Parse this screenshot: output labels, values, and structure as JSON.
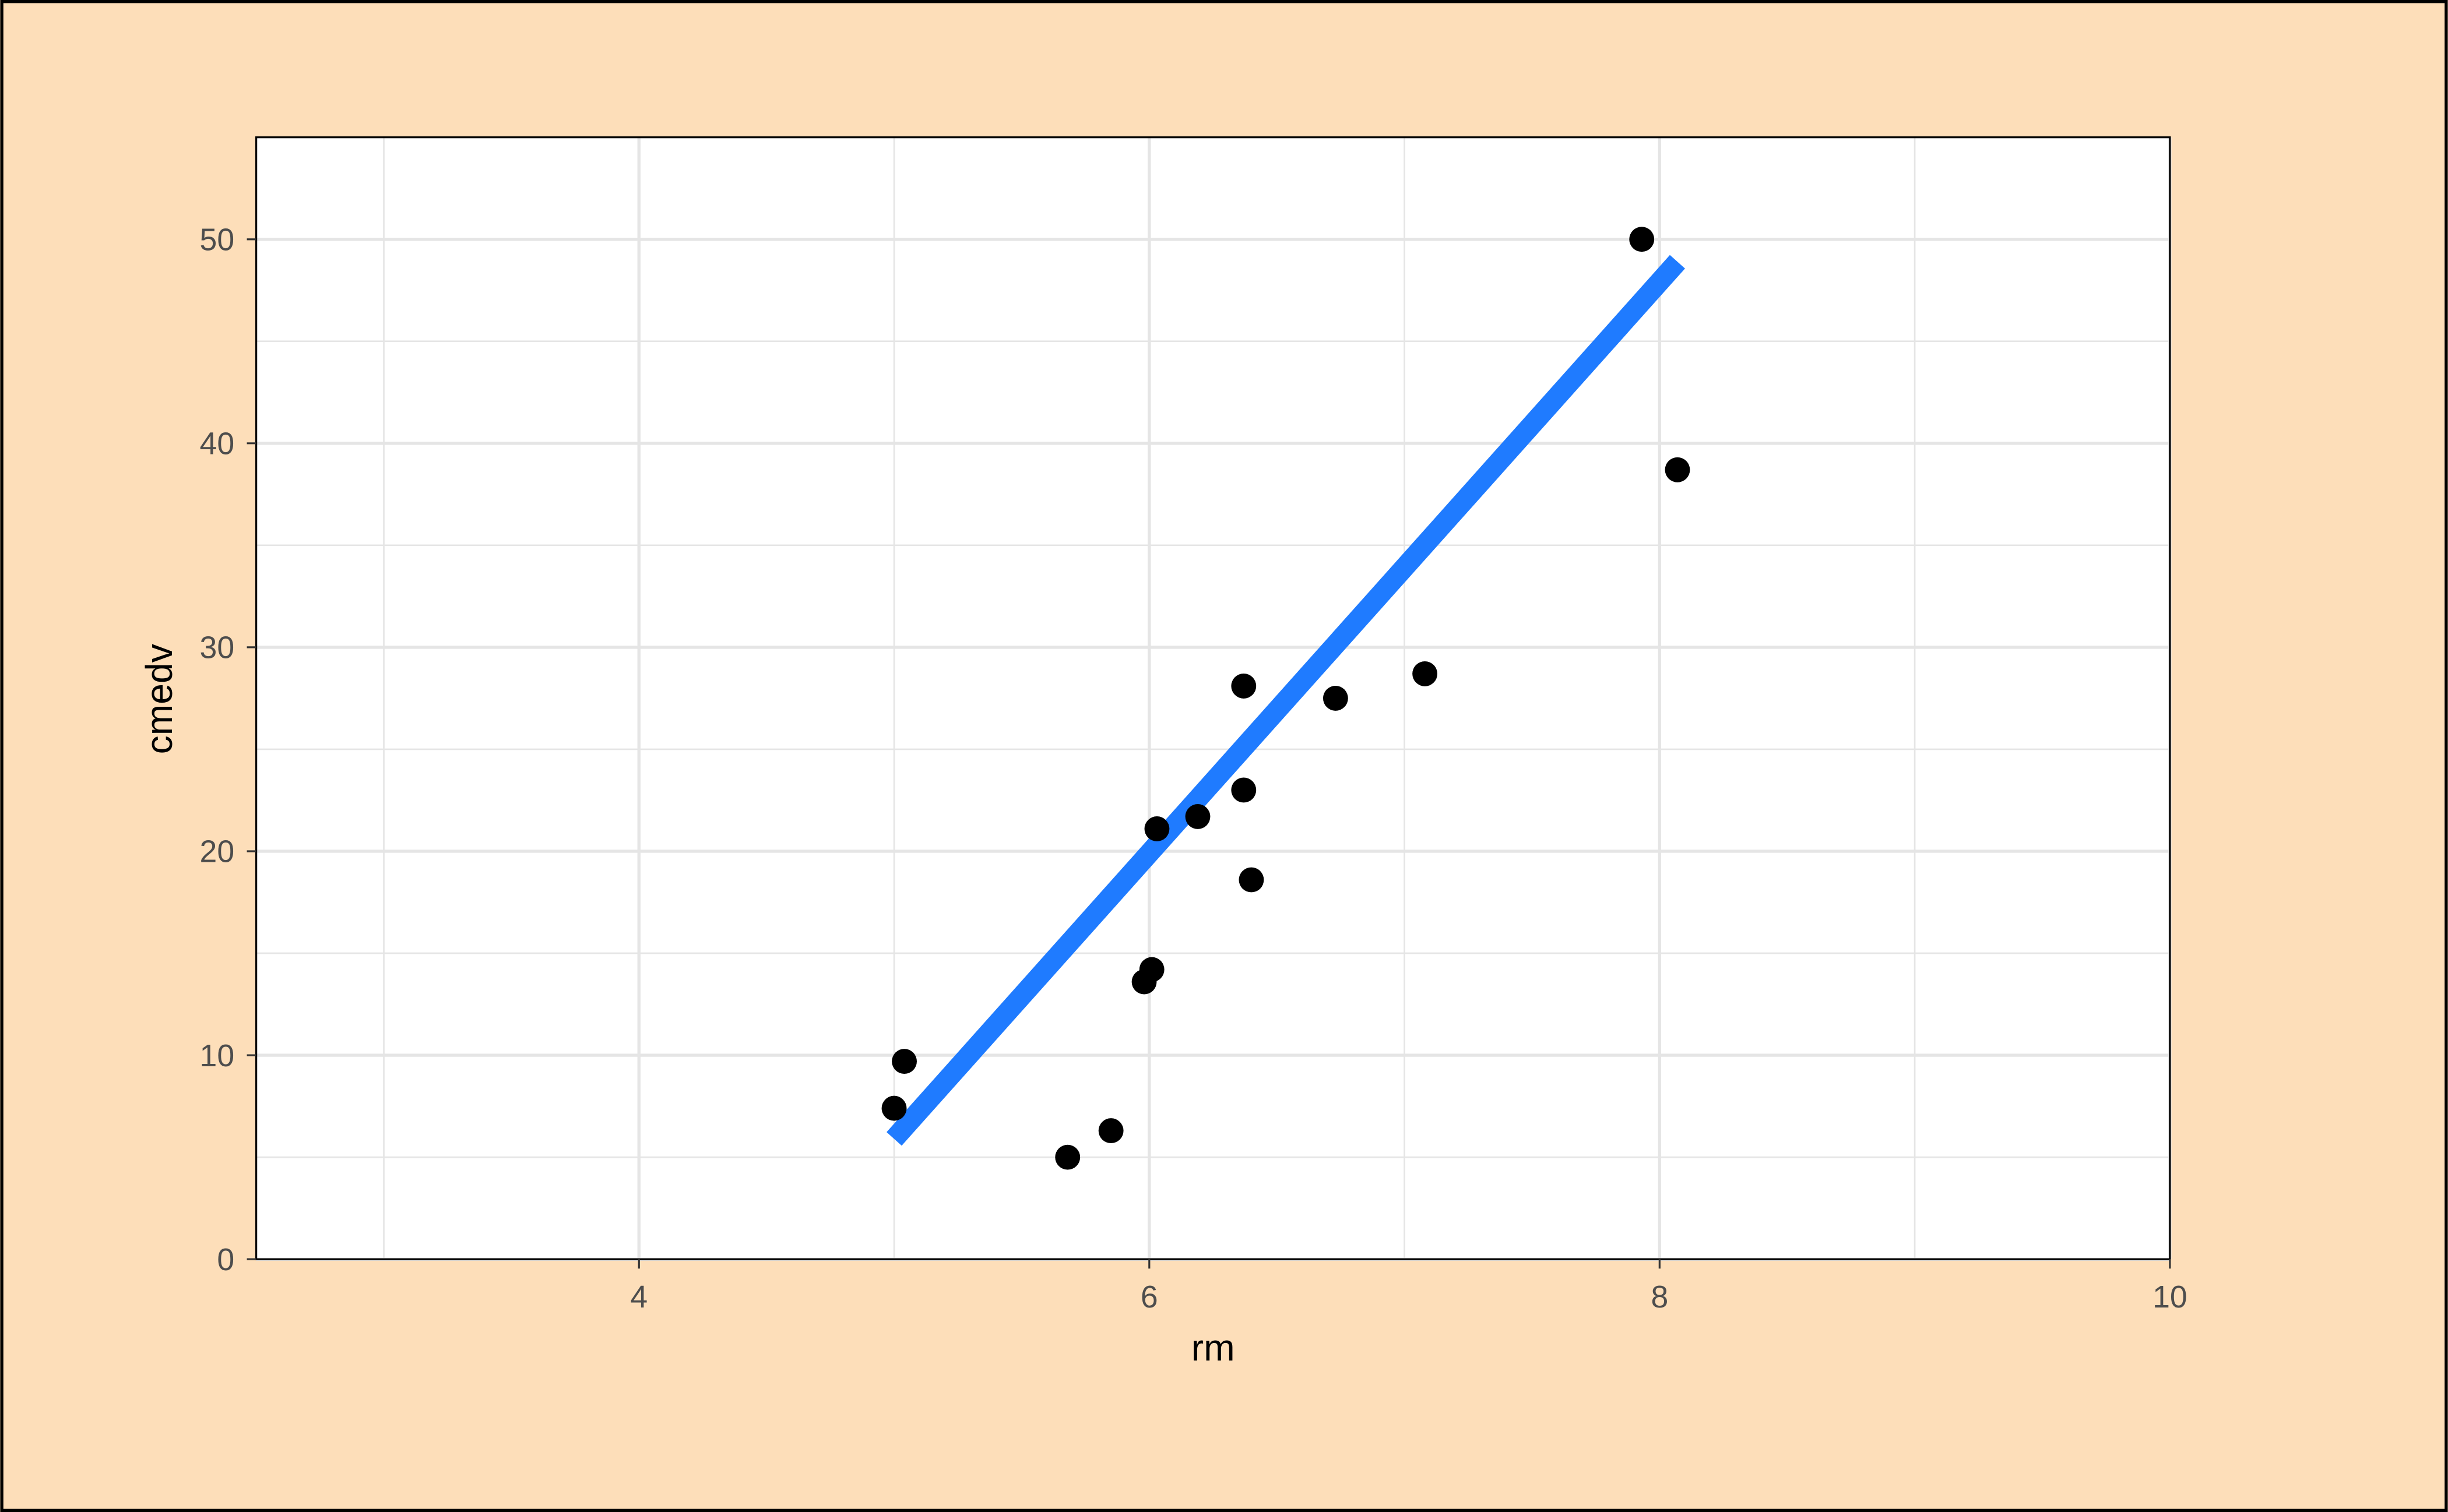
{
  "chart_data": {
    "type": "scatter",
    "title": "",
    "xlabel": "rm",
    "ylabel": "cmedv",
    "xlim": [
      2.5,
      10
    ],
    "ylim": [
      0,
      55
    ],
    "x_ticks": [
      4,
      6,
      8,
      10
    ],
    "y_ticks": [
      0,
      10,
      20,
      30,
      40,
      50
    ],
    "x_tick_labels": [
      "4",
      "6",
      "8",
      "10"
    ],
    "y_tick_labels": [
      "0",
      "10",
      "20",
      "30",
      "40",
      "50"
    ],
    "x_minor_grid": [
      3,
      5,
      7,
      9
    ],
    "y_minor_grid": [
      5,
      15,
      25,
      35,
      45
    ],
    "grid": true,
    "points": {
      "x": [
        7.93,
        8.07,
        7.08,
        6.73,
        6.37,
        6.37,
        6.19,
        6.03,
        6.4,
        6.01,
        5.98,
        5.04,
        5.0,
        5.85,
        5.68
      ],
      "y": [
        50.0,
        38.7,
        28.7,
        27.5,
        28.1,
        23.0,
        21.7,
        21.1,
        18.6,
        14.2,
        13.6,
        9.7,
        7.4,
        6.3,
        5.0
      ],
      "color": "#000000"
    },
    "fit_line": {
      "x": [
        5.0,
        8.07
      ],
      "y": [
        5.9,
        48.9
      ],
      "color": "#1F7BFF"
    },
    "background_color": "#FDDEB9",
    "panel_color": "#FFFFFF",
    "grid_color": "#E5E5E5"
  }
}
